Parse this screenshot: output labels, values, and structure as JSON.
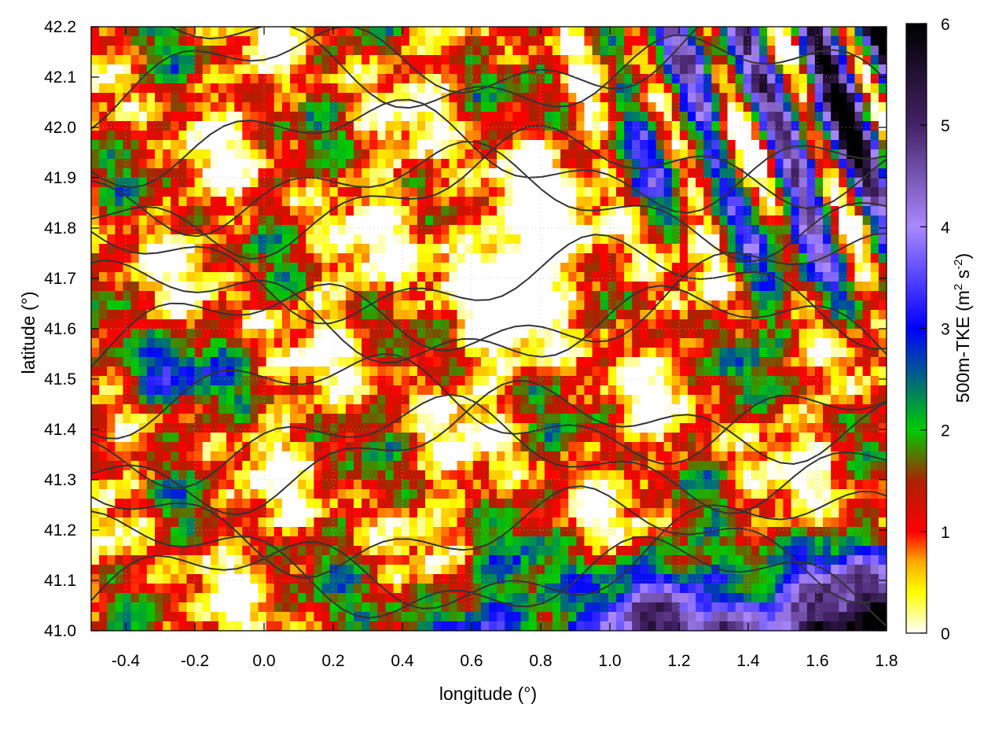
{
  "chart_data": {
    "type": "heatmap",
    "title": "",
    "xlabel": "longitude (°)",
    "ylabel": "latitude (°)",
    "xlim": [
      -0.5,
      1.8
    ],
    "ylim": [
      41.0,
      42.2
    ],
    "xticks": [
      -0.4,
      -0.2,
      0.0,
      0.2,
      0.4,
      0.6,
      0.8,
      1.0,
      1.2,
      1.4,
      1.6,
      1.8
    ],
    "xtick_labels": [
      "-0.4",
      "-0.2",
      "0.0",
      "0.2",
      "0.4",
      "0.6",
      "0.8",
      "1.0",
      "1.2",
      "1.4",
      "1.6",
      "1.8"
    ],
    "yticks": [
      41.0,
      41.1,
      41.2,
      41.3,
      41.4,
      41.5,
      41.6,
      41.7,
      41.8,
      41.9,
      42.0,
      42.1,
      42.2
    ],
    "ytick_labels": [
      "41.0",
      "41.1",
      "41.2",
      "41.3",
      "41.4",
      "41.5",
      "41.6",
      "41.7",
      "41.8",
      "41.9",
      "42.0",
      "42.1",
      "42.2"
    ],
    "grid": true,
    "colorbar": {
      "label_main": "500m-TKE (m",
      "label_sup1": "2",
      "label_mid": " s",
      "label_sup2": "-2",
      "label_end": ")",
      "range": [
        0,
        6
      ],
      "ticks": [
        0,
        1,
        2,
        3,
        4,
        5,
        6
      ],
      "tick_labels": [
        "0",
        "1",
        "2",
        "3",
        "4",
        "5",
        "6"
      ],
      "stops": [
        {
          "value": 0.0,
          "color": "#ffffff"
        },
        {
          "value": 0.4,
          "color": "#ffff00"
        },
        {
          "value": 0.7,
          "color": "#ffaa00"
        },
        {
          "value": 1.0,
          "color": "#ff0000"
        },
        {
          "value": 1.5,
          "color": "#aa2200"
        },
        {
          "value": 2.0,
          "color": "#00cc00"
        },
        {
          "value": 3.0,
          "color": "#0000ff"
        },
        {
          "value": 4.0,
          "color": "#aa88ff"
        },
        {
          "value": 5.0,
          "color": "#442266"
        },
        {
          "value": 6.0,
          "color": "#000000"
        }
      ]
    },
    "contour_color": "#333333"
  }
}
